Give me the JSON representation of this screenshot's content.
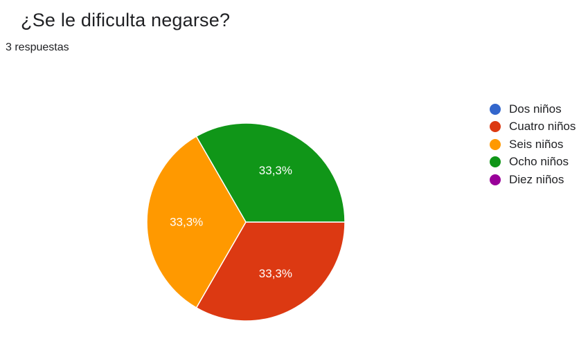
{
  "question": "¿Se le dificulta negarse?",
  "response_count": "3 respuestas",
  "chart_data": {
    "type": "pie",
    "title": "¿Se le dificulta negarse?",
    "categories": [
      "Dos niños",
      "Cuatro niños",
      "Seis niños",
      "Ocho niños",
      "Diez niños"
    ],
    "values": [
      0,
      1,
      1,
      1,
      0
    ],
    "labels": [
      "",
      "33,3%",
      "33,3%",
      "33,3%",
      ""
    ],
    "colors": [
      "#3366cc",
      "#dc3912",
      "#ff9900",
      "#109618",
      "#990099"
    ],
    "legend_position": "right"
  }
}
